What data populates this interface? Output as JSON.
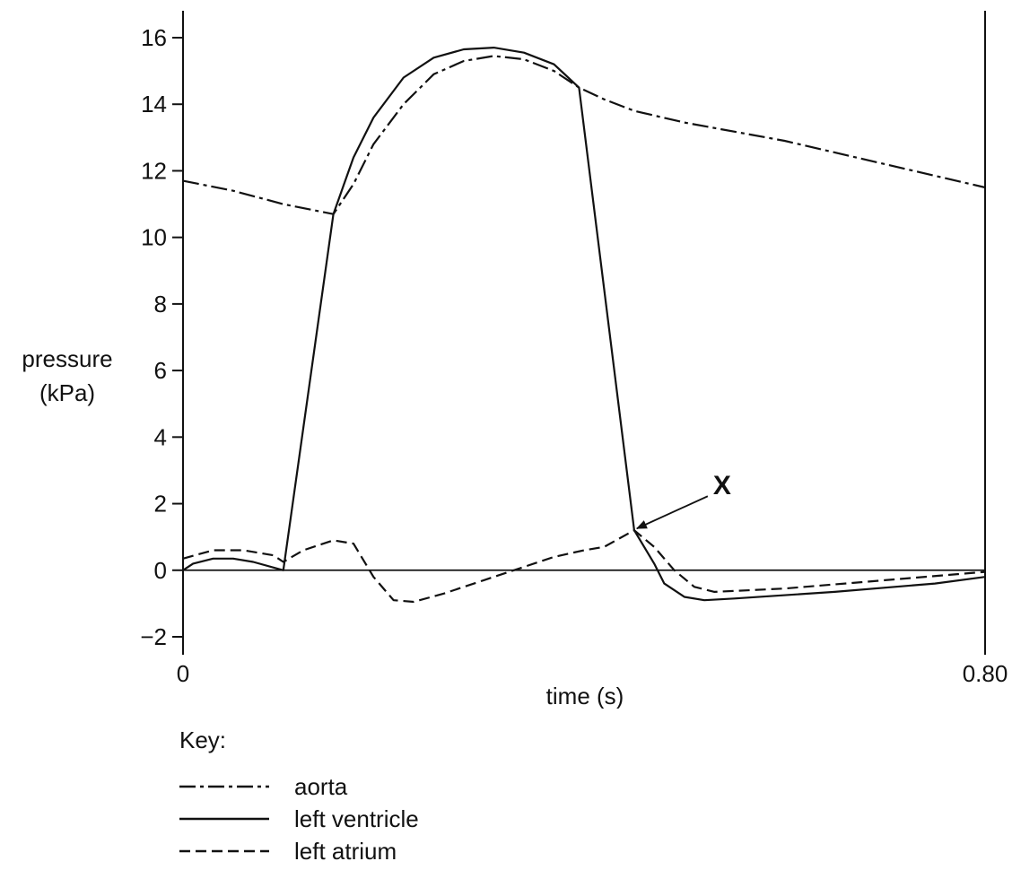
{
  "chart_data": {
    "type": "line",
    "xlabel": "time (s)",
    "ylabel_line1": "pressure",
    "ylabel_line2": "(kPa)",
    "xlim": [
      0,
      0.8
    ],
    "ylim": [
      -2,
      16
    ],
    "x_tick_labels": [
      {
        "value": 0,
        "label": "0"
      },
      {
        "value": 0.8,
        "label": "0.80"
      }
    ],
    "y_ticks": [
      16,
      14,
      12,
      10,
      8,
      6,
      4,
      2,
      0,
      -2
    ],
    "y_tick_labels": [
      "16",
      "14",
      "12",
      "10",
      "8",
      "6",
      "4",
      "2",
      "0",
      "−2"
    ],
    "legend_title": "Key:",
    "series": [
      {
        "name": "aorta",
        "style": "dashdot",
        "points": [
          [
            0.0,
            11.7
          ],
          [
            0.05,
            11.4
          ],
          [
            0.1,
            11.0
          ],
          [
            0.15,
            10.7
          ],
          [
            0.17,
            11.6
          ],
          [
            0.19,
            12.8
          ],
          [
            0.22,
            14.0
          ],
          [
            0.25,
            14.9
          ],
          [
            0.28,
            15.3
          ],
          [
            0.31,
            15.45
          ],
          [
            0.34,
            15.35
          ],
          [
            0.37,
            15.0
          ],
          [
            0.395,
            14.5
          ],
          [
            0.42,
            14.15
          ],
          [
            0.45,
            13.8
          ],
          [
            0.5,
            13.45
          ],
          [
            0.6,
            12.9
          ],
          [
            0.7,
            12.2
          ],
          [
            0.8,
            11.5
          ]
        ]
      },
      {
        "name": "left ventricle",
        "style": "solid",
        "points": [
          [
            0.0,
            0.0
          ],
          [
            0.01,
            0.2
          ],
          [
            0.03,
            0.35
          ],
          [
            0.05,
            0.35
          ],
          [
            0.07,
            0.25
          ],
          [
            0.1,
            0.0
          ],
          [
            0.15,
            10.7
          ],
          [
            0.17,
            12.4
          ],
          [
            0.19,
            13.6
          ],
          [
            0.22,
            14.8
          ],
          [
            0.25,
            15.4
          ],
          [
            0.28,
            15.65
          ],
          [
            0.31,
            15.7
          ],
          [
            0.34,
            15.55
          ],
          [
            0.37,
            15.2
          ],
          [
            0.395,
            14.5
          ],
          [
            0.45,
            1.2
          ],
          [
            0.47,
            0.2
          ],
          [
            0.48,
            -0.4
          ],
          [
            0.5,
            -0.8
          ],
          [
            0.52,
            -0.9
          ],
          [
            0.55,
            -0.85
          ],
          [
            0.65,
            -0.65
          ],
          [
            0.75,
            -0.4
          ],
          [
            0.8,
            -0.2
          ]
        ]
      },
      {
        "name": "left atrium",
        "style": "dashed",
        "points": [
          [
            0.0,
            0.35
          ],
          [
            0.03,
            0.6
          ],
          [
            0.06,
            0.6
          ],
          [
            0.09,
            0.45
          ],
          [
            0.1,
            0.25
          ],
          [
            0.12,
            0.6
          ],
          [
            0.15,
            0.9
          ],
          [
            0.17,
            0.8
          ],
          [
            0.19,
            -0.2
          ],
          [
            0.21,
            -0.9
          ],
          [
            0.23,
            -0.95
          ],
          [
            0.26,
            -0.7
          ],
          [
            0.3,
            -0.3
          ],
          [
            0.34,
            0.1
          ],
          [
            0.37,
            0.4
          ],
          [
            0.4,
            0.6
          ],
          [
            0.42,
            0.7
          ],
          [
            0.45,
            1.2
          ],
          [
            0.47,
            0.7
          ],
          [
            0.49,
            0.0
          ],
          [
            0.51,
            -0.5
          ],
          [
            0.53,
            -0.65
          ],
          [
            0.6,
            -0.55
          ],
          [
            0.7,
            -0.3
          ],
          [
            0.8,
            -0.05
          ]
        ]
      }
    ],
    "annotations": [
      {
        "text": "X",
        "points_to": {
          "x": 0.45,
          "y": 1.2
        }
      }
    ]
  }
}
